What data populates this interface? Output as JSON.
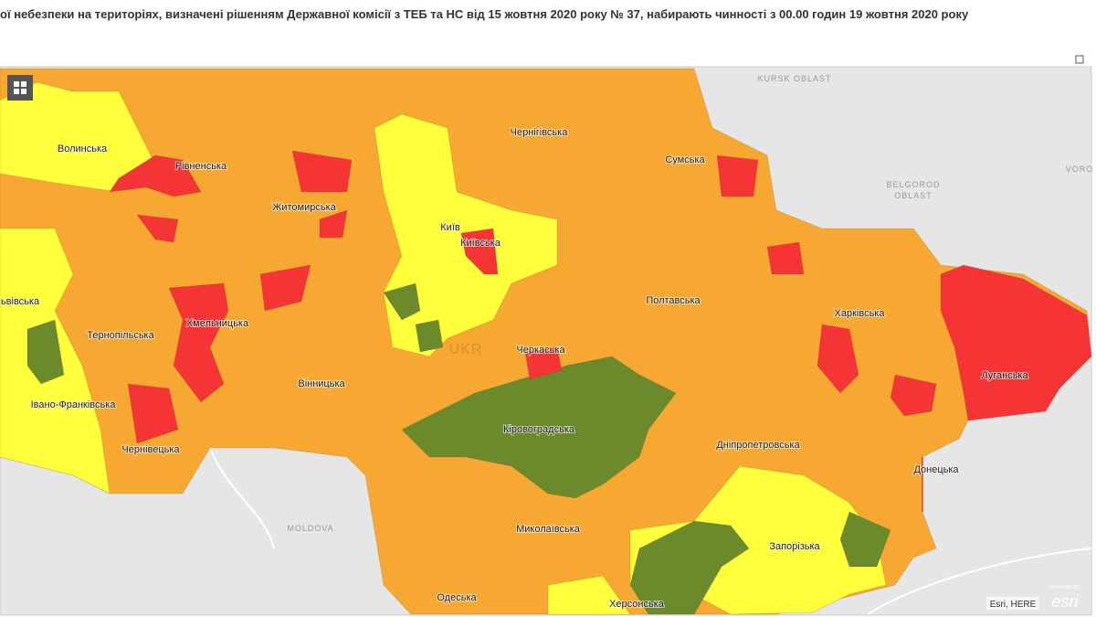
{
  "header": {
    "title": "ої небезпеки на територіях, визначені рішенням Державної комісії з ТЕБ та НС від 15 жовтня 2020 року № 37, набирають чинності з 00.00 годин 19 жовтня 2020 року"
  },
  "map": {
    "regions": [
      "Волинська",
      "Рівненська",
      "Житомирська",
      "Чернігівська",
      "Сумська",
      "Київ",
      "Київська",
      "ьвівська",
      "Тернопільська",
      "Хмельницька",
      "Вінницька",
      "Полтавська",
      "Харківська",
      "Черкаська",
      "Луганська",
      "Івано-Франківська",
      "Кіровоградська",
      "Дніпропетровська",
      "Чернівецька",
      "Донецька",
      "Миколаївська",
      "Запорізька",
      "Одеська",
      "Херсонська"
    ],
    "places": [
      "KURSK OBLAST",
      "BELGOROD",
      "OBLAST",
      "VORO",
      "MOLDOVA",
      "UKR"
    ],
    "attribution": "Esri, HERE",
    "logo": {
      "caption": "POWERED BY",
      "text": "esri"
    }
  }
}
